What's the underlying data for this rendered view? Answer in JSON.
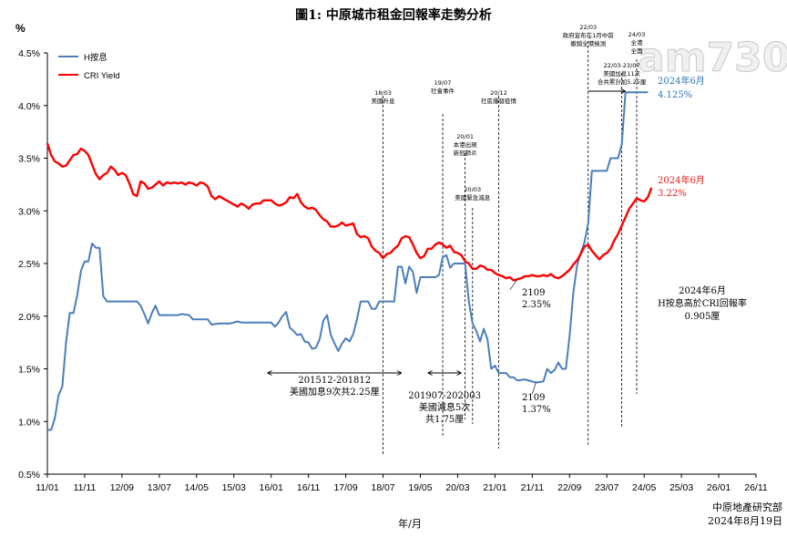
{
  "chart_data": {
    "type": "line",
    "title": "圖1: 中原城市租金回報率走勢分析",
    "y_unit_label": "%",
    "xlabel": "年/月",
    "ylim": [
      0.5,
      4.5
    ],
    "y_ticks": [
      "0.5%",
      "1.0%",
      "1.5%",
      "2.0%",
      "2.5%",
      "3.0%",
      "3.5%",
      "4.0%",
      "4.5%"
    ],
    "x_ticks": [
      "11/01",
      "11/11",
      "12/09",
      "13/07",
      "14/05",
      "15/03",
      "16/01",
      "16/11",
      "17/09",
      "18/07",
      "19/05",
      "20/03",
      "21/01",
      "21/11",
      "22/09",
      "23/07",
      "24/05",
      "25/03",
      "26/01",
      "26/11"
    ],
    "legend_position": "top-left",
    "colors": {
      "hibor": "#4a7ebb",
      "cri": "#ff0000"
    },
    "series": [
      {
        "name": "H按息",
        "key": "hibor",
        "points": [
          [
            0,
            0.92
          ],
          [
            1,
            0.92
          ],
          [
            2,
            1.03
          ],
          [
            3,
            1.25
          ],
          [
            4,
            1.33
          ],
          [
            5,
            1.75
          ],
          [
            6,
            2.03
          ],
          [
            7,
            2.03
          ],
          [
            8,
            2.2
          ],
          [
            9,
            2.43
          ],
          [
            10,
            2.52
          ],
          [
            11,
            2.52
          ],
          [
            12,
            2.69
          ],
          [
            13,
            2.65
          ],
          [
            14,
            2.65
          ],
          [
            15,
            2.19
          ],
          [
            16,
            2.14
          ],
          [
            17,
            2.14
          ],
          [
            24,
            2.14
          ],
          [
            25,
            2.1
          ],
          [
            26,
            2.02
          ],
          [
            27,
            1.93
          ],
          [
            28,
            2.03
          ],
          [
            29,
            2.1
          ],
          [
            30,
            2.01
          ],
          [
            35,
            2.01
          ],
          [
            36,
            2.02
          ],
          [
            38,
            2.01
          ],
          [
            39,
            1.97
          ],
          [
            43,
            1.97
          ],
          [
            44,
            1.92
          ],
          [
            46,
            1.93
          ],
          [
            49,
            1.93
          ],
          [
            51,
            1.95
          ],
          [
            52,
            1.94
          ],
          [
            60,
            1.94
          ],
          [
            61,
            1.9
          ],
          [
            62,
            1.94
          ],
          [
            63,
            2.0
          ],
          [
            64,
            2.04
          ],
          [
            65,
            1.89
          ],
          [
            66,
            1.86
          ],
          [
            67,
            1.82
          ],
          [
            68,
            1.83
          ],
          [
            69,
            1.76
          ],
          [
            70,
            1.75
          ],
          [
            71,
            1.69
          ],
          [
            72,
            1.7
          ],
          [
            73,
            1.78
          ],
          [
            74,
            1.96
          ],
          [
            75,
            2.01
          ],
          [
            76,
            1.82
          ],
          [
            77,
            1.74
          ],
          [
            78,
            1.67
          ],
          [
            79,
            1.74
          ],
          [
            80,
            1.79
          ],
          [
            81,
            1.76
          ],
          [
            82,
            1.83
          ],
          [
            83,
            1.97
          ],
          [
            84,
            2.14
          ],
          [
            86,
            2.14
          ],
          [
            87,
            2.07
          ],
          [
            88,
            2.07
          ],
          [
            89,
            2.14
          ],
          [
            93,
            2.14
          ],
          [
            94,
            2.47
          ],
          [
            95,
            2.47
          ],
          [
            96,
            2.31
          ],
          [
            97,
            2.47
          ],
          [
            98,
            2.42
          ],
          [
            99,
            2.22
          ],
          [
            100,
            2.37
          ],
          [
            104,
            2.37
          ],
          [
            105,
            2.39
          ],
          [
            106,
            2.56
          ],
          [
            107,
            2.58
          ],
          [
            108,
            2.46
          ],
          [
            109,
            2.5
          ],
          [
            112,
            2.5
          ],
          [
            113,
            2.14
          ],
          [
            114,
            1.93
          ],
          [
            115,
            1.86
          ],
          [
            116,
            1.76
          ],
          [
            117,
            1.88
          ],
          [
            118,
            1.78
          ],
          [
            119,
            1.5
          ],
          [
            120,
            1.53
          ],
          [
            121,
            1.46
          ],
          [
            123,
            1.46
          ],
          [
            124,
            1.42
          ],
          [
            125,
            1.42
          ],
          [
            126,
            1.39
          ],
          [
            128,
            1.4
          ],
          [
            131,
            1.37
          ],
          [
            133,
            1.38
          ],
          [
            134,
            1.5
          ],
          [
            135,
            1.46
          ],
          [
            136,
            1.49
          ],
          [
            137,
            1.56
          ],
          [
            138,
            1.5
          ],
          [
            139,
            1.5
          ],
          [
            140,
            1.81
          ],
          [
            141,
            2.22
          ],
          [
            142,
            2.48
          ],
          [
            143,
            2.6
          ],
          [
            144,
            2.7
          ],
          [
            145,
            2.88
          ],
          [
            146,
            3.38
          ],
          [
            150,
            3.38
          ],
          [
            151,
            3.5
          ],
          [
            153,
            3.5
          ],
          [
            154,
            3.63
          ],
          [
            155,
            4.125
          ],
          [
            161,
            4.125
          ]
        ]
      },
      {
        "name": "CRI Yield",
        "key": "cri",
        "points": [
          [
            0,
            3.64
          ],
          [
            1,
            3.53
          ],
          [
            2,
            3.47
          ],
          [
            3,
            3.45
          ],
          [
            4,
            3.42
          ],
          [
            5,
            3.43
          ],
          [
            6,
            3.48
          ],
          [
            7,
            3.53
          ],
          [
            8,
            3.54
          ],
          [
            9,
            3.59
          ],
          [
            10,
            3.57
          ],
          [
            11,
            3.53
          ],
          [
            12,
            3.44
          ],
          [
            13,
            3.35
          ],
          [
            14,
            3.3
          ],
          [
            15,
            3.34
          ],
          [
            16,
            3.36
          ],
          [
            17,
            3.42
          ],
          [
            18,
            3.39
          ],
          [
            19,
            3.34
          ],
          [
            20,
            3.36
          ],
          [
            21,
            3.34
          ],
          [
            22,
            3.26
          ],
          [
            23,
            3.16
          ],
          [
            24,
            3.14
          ],
          [
            25,
            3.28
          ],
          [
            26,
            3.26
          ],
          [
            27,
            3.21
          ],
          [
            28,
            3.22
          ],
          [
            29,
            3.25
          ],
          [
            30,
            3.28
          ],
          [
            31,
            3.24
          ],
          [
            32,
            3.27
          ],
          [
            33,
            3.26
          ],
          [
            34,
            3.27
          ],
          [
            35,
            3.26
          ],
          [
            36,
            3.27
          ],
          [
            37,
            3.25
          ],
          [
            38,
            3.27
          ],
          [
            39,
            3.26
          ],
          [
            40,
            3.24
          ],
          [
            41,
            3.27
          ],
          [
            42,
            3.26
          ],
          [
            43,
            3.23
          ],
          [
            44,
            3.14
          ],
          [
            45,
            3.11
          ],
          [
            46,
            3.14
          ],
          [
            47,
            3.12
          ],
          [
            48,
            3.1
          ],
          [
            49,
            3.08
          ],
          [
            50,
            3.06
          ],
          [
            51,
            3.04
          ],
          [
            52,
            3.07
          ],
          [
            53,
            3.05
          ],
          [
            54,
            3.02
          ],
          [
            55,
            3.06
          ],
          [
            56,
            3.07
          ],
          [
            57,
            3.07
          ],
          [
            58,
            3.1
          ],
          [
            59,
            3.1
          ],
          [
            60,
            3.1
          ],
          [
            61,
            3.07
          ],
          [
            62,
            3.05
          ],
          [
            63,
            3.06
          ],
          [
            64,
            3.08
          ],
          [
            65,
            3.13
          ],
          [
            66,
            3.12
          ],
          [
            67,
            3.16
          ],
          [
            68,
            3.08
          ],
          [
            69,
            3.04
          ],
          [
            70,
            3.02
          ],
          [
            71,
            3.03
          ],
          [
            72,
            3.01
          ],
          [
            73,
            2.96
          ],
          [
            74,
            2.92
          ],
          [
            75,
            2.9
          ],
          [
            76,
            2.85
          ],
          [
            77,
            2.85
          ],
          [
            78,
            2.86
          ],
          [
            79,
            2.89
          ],
          [
            80,
            2.86
          ],
          [
            81,
            2.87
          ],
          [
            82,
            2.88
          ],
          [
            83,
            2.78
          ],
          [
            84,
            2.75
          ],
          [
            85,
            2.76
          ],
          [
            86,
            2.74
          ],
          [
            87,
            2.66
          ],
          [
            88,
            2.62
          ],
          [
            89,
            2.6
          ],
          [
            90,
            2.55
          ],
          [
            91,
            2.59
          ],
          [
            92,
            2.6
          ],
          [
            93,
            2.64
          ],
          [
            94,
            2.67
          ],
          [
            95,
            2.74
          ],
          [
            96,
            2.76
          ],
          [
            97,
            2.75
          ],
          [
            98,
            2.68
          ],
          [
            99,
            2.6
          ],
          [
            100,
            2.55
          ],
          [
            101,
            2.57
          ],
          [
            102,
            2.64
          ],
          [
            103,
            2.64
          ],
          [
            104,
            2.68
          ],
          [
            105,
            2.7
          ],
          [
            106,
            2.68
          ],
          [
            107,
            2.65
          ],
          [
            108,
            2.67
          ],
          [
            109,
            2.61
          ],
          [
            110,
            2.6
          ],
          [
            111,
            2.58
          ],
          [
            112,
            2.52
          ],
          [
            113,
            2.5
          ],
          [
            114,
            2.45
          ],
          [
            115,
            2.45
          ],
          [
            116,
            2.48
          ],
          [
            117,
            2.47
          ],
          [
            118,
            2.44
          ],
          [
            119,
            2.44
          ],
          [
            120,
            2.41
          ],
          [
            121,
            2.39
          ],
          [
            122,
            2.38
          ],
          [
            123,
            2.36
          ],
          [
            124,
            2.37
          ],
          [
            125,
            2.34
          ],
          [
            126,
            2.35
          ],
          [
            127,
            2.36
          ],
          [
            128,
            2.38
          ],
          [
            129,
            2.38
          ],
          [
            130,
            2.39
          ],
          [
            131,
            2.38
          ],
          [
            132,
            2.38
          ],
          [
            133,
            2.39
          ],
          [
            134,
            2.38
          ],
          [
            135,
            2.4
          ],
          [
            136,
            2.37
          ],
          [
            137,
            2.36
          ],
          [
            138,
            2.38
          ],
          [
            139,
            2.41
          ],
          [
            140,
            2.44
          ],
          [
            141,
            2.49
          ],
          [
            142,
            2.53
          ],
          [
            143,
            2.59
          ],
          [
            144,
            2.66
          ],
          [
            145,
            2.68
          ],
          [
            146,
            2.62
          ],
          [
            147,
            2.58
          ],
          [
            148,
            2.54
          ],
          [
            149,
            2.58
          ],
          [
            150,
            2.6
          ],
          [
            151,
            2.64
          ],
          [
            152,
            2.72
          ],
          [
            153,
            2.78
          ],
          [
            154,
            2.86
          ],
          [
            155,
            2.94
          ],
          [
            156,
            3.02
          ],
          [
            157,
            3.07
          ],
          [
            158,
            3.12
          ],
          [
            159,
            3.1
          ],
          [
            160,
            3.09
          ],
          [
            161,
            3.13
          ],
          [
            162,
            3.22
          ]
        ]
      }
    ],
    "event_annotations": [
      {
        "lines": [
          "18/03",
          "美國升息"
        ],
        "x_index": 90
      },
      {
        "lines": [
          "19/07",
          "社會事件"
        ],
        "x_index": 106
      },
      {
        "lines": [
          "20/01",
          "本港出現",
          "新冠肺炎"
        ],
        "x_index": 112
      },
      {
        "lines": [
          "20/03",
          "美國緊急減息"
        ],
        "x_index": 114
      },
      {
        "lines": [
          "20/12",
          "社區爆發疫情"
        ],
        "x_index": 121
      },
      {
        "lines": [
          "22/03",
          "政府宣布在1月中前",
          "撤銷全港檢測"
        ],
        "x_index": 145
      },
      {
        "lines": [
          "22/03-23/07",
          "美國加息11次",
          "合共累計加5.25厘"
        ],
        "x_index": 154
      },
      {
        "lines": [
          "24/03",
          "全港",
          "全面"
        ],
        "x_index": 158
      }
    ],
    "period_annotations": [
      {
        "lines": [
          "201512-201812",
          "美國加息9次共2.25厘"
        ],
        "from_index": 59,
        "to_index": 95
      },
      {
        "lines": [
          "201907-202003",
          "美國減息5次",
          "共1.75厘"
        ],
        "from_index": 102,
        "to_index": 111
      }
    ],
    "value_callouts": [
      {
        "series": "hibor",
        "lines": [
          "2024年6月",
          "4.125%"
        ]
      },
      {
        "series": "cri",
        "lines": [
          "2024年6月",
          "3.22%"
        ]
      },
      {
        "series": "cri",
        "lines": [
          "2109",
          "2.35%"
        ]
      },
      {
        "series": "hibor",
        "lines": [
          "2109",
          "1.37%"
        ]
      }
    ],
    "note": [
      "2024年6月",
      "H按息高於CRI回報率",
      "0.905厘"
    ],
    "source": [
      "中原地產研究部",
      "2024年8月19日"
    ],
    "watermark": "am730"
  }
}
